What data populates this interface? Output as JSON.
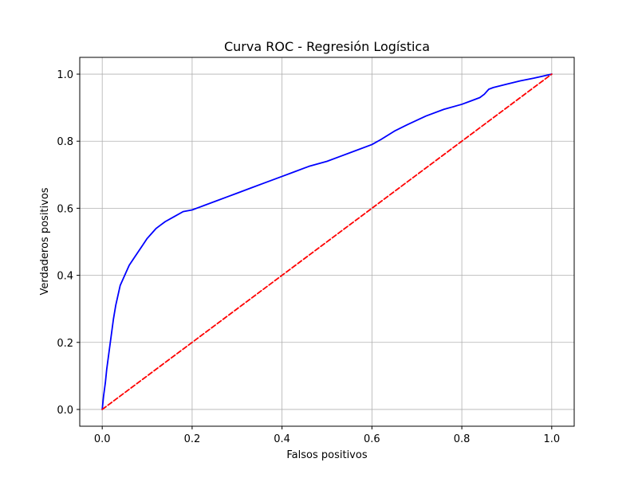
{
  "chart_data": {
    "type": "line",
    "title": "Curva ROC - Regresión Logística",
    "xlabel": "Falsos positivos",
    "ylabel": "Verdaderos positivos",
    "xlim": [
      -0.05,
      1.05
    ],
    "ylim": [
      -0.05,
      1.05
    ],
    "x_ticks": [
      0.0,
      0.2,
      0.4,
      0.6,
      0.8,
      1.0
    ],
    "y_ticks": [
      0.0,
      0.2,
      0.4,
      0.6,
      0.8,
      1.0
    ],
    "x_tick_labels": [
      "0.0",
      "0.2",
      "0.4",
      "0.6",
      "0.8",
      "1.0"
    ],
    "y_tick_labels": [
      "0.0",
      "0.2",
      "0.4",
      "0.6",
      "0.8",
      "1.0"
    ],
    "grid": true,
    "legend": false,
    "series": [
      {
        "color": "#0000ff",
        "style": "solid",
        "x": [
          0.0,
          0.003,
          0.007,
          0.01,
          0.015,
          0.02,
          0.025,
          0.03,
          0.035,
          0.04,
          0.05,
          0.06,
          0.07,
          0.08,
          0.09,
          0.1,
          0.11,
          0.12,
          0.13,
          0.14,
          0.16,
          0.18,
          0.2,
          0.22,
          0.25,
          0.28,
          0.3,
          0.33,
          0.36,
          0.4,
          0.43,
          0.46,
          0.5,
          0.53,
          0.56,
          0.6,
          0.62,
          0.65,
          0.68,
          0.72,
          0.76,
          0.8,
          0.82,
          0.84,
          0.85,
          0.86,
          0.87,
          0.9,
          0.93,
          0.96,
          0.98,
          1.0
        ],
        "y": [
          0.0,
          0.04,
          0.08,
          0.12,
          0.17,
          0.22,
          0.27,
          0.31,
          0.34,
          0.37,
          0.4,
          0.43,
          0.45,
          0.47,
          0.49,
          0.51,
          0.525,
          0.54,
          0.55,
          0.56,
          0.575,
          0.59,
          0.595,
          0.605,
          0.62,
          0.635,
          0.645,
          0.66,
          0.675,
          0.695,
          0.71,
          0.725,
          0.74,
          0.755,
          0.77,
          0.79,
          0.805,
          0.83,
          0.85,
          0.875,
          0.895,
          0.91,
          0.92,
          0.93,
          0.94,
          0.955,
          0.96,
          0.97,
          0.98,
          0.988,
          0.994,
          1.0
        ]
      },
      {
        "color": "#ff0000",
        "style": "dashed",
        "x": [
          0.0,
          1.0
        ],
        "y": [
          0.0,
          1.0
        ]
      }
    ]
  }
}
